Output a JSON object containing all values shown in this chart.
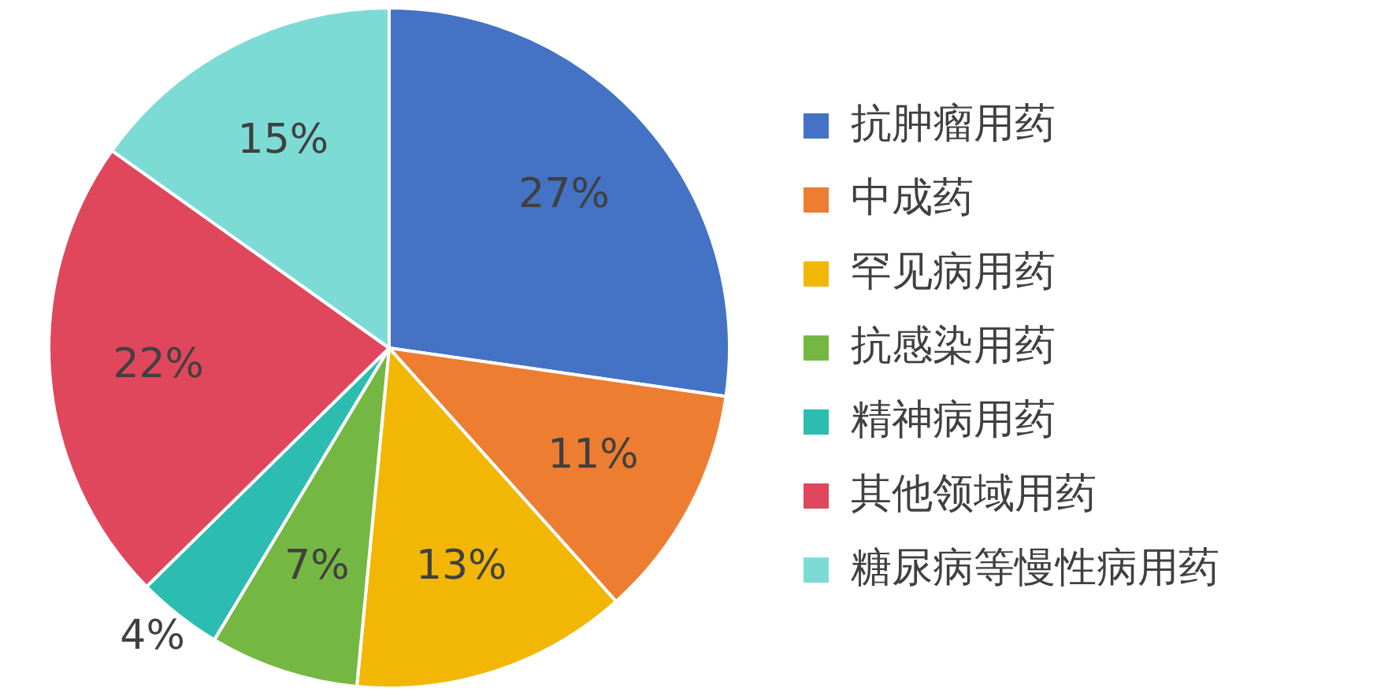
{
  "chart_data": {
    "type": "pie",
    "categories": [
      "抗肿瘤用药",
      "中成药",
      "罕见病用药",
      "抗感染用药",
      "精神病用药",
      "其他领域用药",
      "糖尿病等慢性病用药"
    ],
    "values": [
      27,
      11,
      13,
      7,
      4,
      22,
      15
    ],
    "colors": [
      "#4472c4",
      "#ed7d31",
      "#f2b705",
      "#74b843",
      "#2dbdb0",
      "#e0475c",
      "#7ddbd6"
    ],
    "value_labels": [
      "27%",
      "11%",
      "13%",
      "7%",
      "4%",
      "22%",
      "15%"
    ],
    "legend": "right"
  }
}
